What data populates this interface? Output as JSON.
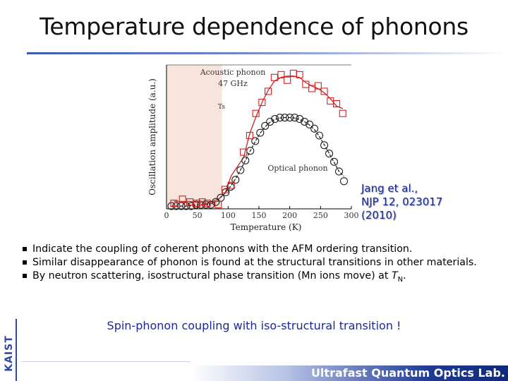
{
  "slide": {
    "title": "Temperature dependence of phonons",
    "citation": [
      "Jang et al.,",
      "NJP 12, 023017",
      "(2010)"
    ],
    "bullets": [
      "Indicate the coupling of coherent phonons with the AFM ordering transition.",
      "Similar disappearance of phonon is found at the structural transitions in other materials.",
      "By neutron scattering, isostructural phase transition (Mn ions move) at "
    ],
    "bullet3_symbol": "T",
    "bullet3_subscript": "N",
    "bullet3_end": ".",
    "highlight": "Spin-phonon coupling with iso-structural transition !",
    "logo": "KAIST",
    "footer": "Ultrafast Quantum Optics Lab."
  },
  "chart_data": {
    "type": "scatter",
    "xlabel": "Temperature (K)",
    "ylabel": "Oscillation amplitude (a.u.)",
    "xlim": [
      0,
      300
    ],
    "x_ticks": [
      0,
      50,
      100,
      150,
      200,
      250,
      300
    ],
    "x_tick_labels": [
      "0",
      "50",
      "100",
      "150",
      "200",
      "250",
      "300"
    ],
    "shaded_region": [
      0,
      90
    ],
    "annotations": {
      "acoustic": [
        "Acoustic phonon",
        "47 GHz"
      ],
      "ts": "Ts",
      "optical": "Optical phonon"
    },
    "colors": {
      "acoustic": "#d32020",
      "optical": "#222222",
      "shade": "#f7e4dc"
    },
    "series": [
      {
        "name": "Acoustic phonon",
        "marker": "square",
        "x": [
          12,
          26,
          38,
          49,
          58,
          66,
          84,
          95,
          105,
          125,
          135,
          145,
          155,
          165,
          175,
          186,
          196,
          206,
          216,
          226,
          236,
          246,
          256,
          266,
          276,
          286
        ],
        "y": [
          0.04,
          0.07,
          0.05,
          0.04,
          0.05,
          0.04,
          0.03,
          0.14,
          0.17,
          0.41,
          0.53,
          0.69,
          0.77,
          0.85,
          0.95,
          0.97,
          0.93,
          0.98,
          0.97,
          0.9,
          0.87,
          0.89,
          0.85,
          0.78,
          0.76,
          0.69
        ]
      },
      {
        "name": "Optical phonon",
        "marker": "circle",
        "x": [
          8,
          16,
          24,
          32,
          40,
          48,
          56,
          64,
          72,
          80,
          88,
          96,
          104,
          112,
          120,
          128,
          136,
          144,
          152,
          160,
          168,
          176,
          184,
          192,
          200,
          208,
          216,
          224,
          232,
          240,
          248,
          256,
          264,
          272,
          280,
          288
        ],
        "y": [
          0.02,
          0.02,
          0.02,
          0.02,
          0.02,
          0.03,
          0.03,
          0.03,
          0.03,
          0.05,
          0.08,
          0.12,
          0.16,
          0.21,
          0.28,
          0.35,
          0.42,
          0.49,
          0.55,
          0.6,
          0.63,
          0.65,
          0.66,
          0.66,
          0.66,
          0.66,
          0.65,
          0.63,
          0.61,
          0.58,
          0.53,
          0.46,
          0.4,
          0.34,
          0.27,
          0.2
        ]
      }
    ]
  }
}
